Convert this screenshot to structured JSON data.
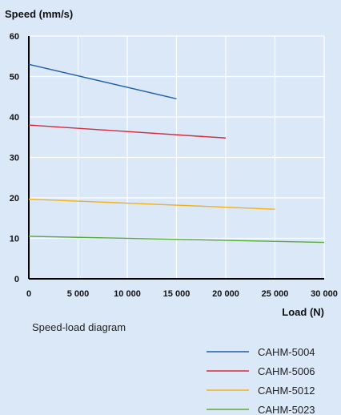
{
  "chart_data": {
    "type": "line",
    "ylabel": "Speed (mm/s)",
    "xlabel": "Load (N)",
    "caption": "Speed-load diagram",
    "xlim": [
      0,
      30000
    ],
    "ylim": [
      0,
      60
    ],
    "x_ticks": [
      0,
      5000,
      10000,
      15000,
      20000,
      25000,
      30000
    ],
    "x_tick_labels": [
      "0",
      "5 000",
      "10 000",
      "15 000",
      "20 000",
      "25 000",
      "30 000"
    ],
    "y_ticks": [
      0,
      10,
      20,
      30,
      40,
      50,
      60
    ],
    "y_tick_labels": [
      "0",
      "10",
      "20",
      "30",
      "40",
      "50",
      "60"
    ],
    "grid": true,
    "legend_position": "bottom-right",
    "series": [
      {
        "name": "CAHM-5004",
        "color": "#1f5fa8",
        "x": [
          0,
          15000
        ],
        "y": [
          53,
          44.5
        ]
      },
      {
        "name": "CAHM-5006",
        "color": "#d42a3c",
        "x": [
          0,
          20000
        ],
        "y": [
          38,
          34.8
        ]
      },
      {
        "name": "CAHM-5012",
        "color": "#f2b11c",
        "x": [
          0,
          25000
        ],
        "y": [
          19.7,
          17.2
        ]
      },
      {
        "name": "CAHM-5023",
        "color": "#5aaa3a",
        "x": [
          0,
          30000
        ],
        "y": [
          10.5,
          9
        ]
      }
    ]
  }
}
